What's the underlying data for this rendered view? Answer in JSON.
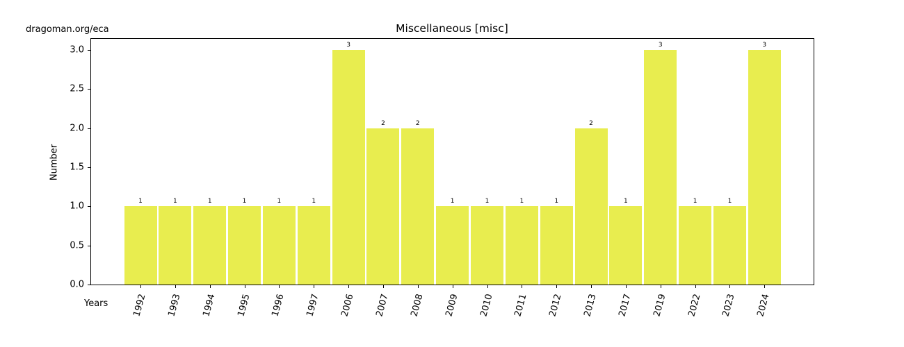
{
  "watermark": "dragoman.org/eca",
  "chart_data": {
    "type": "bar",
    "title": "Miscellaneous [misc]",
    "xlabel": "Years",
    "ylabel": "Number",
    "categories": [
      "1992",
      "1993",
      "1994",
      "1995",
      "1996",
      "1997",
      "2006",
      "2007",
      "2008",
      "2009",
      "2010",
      "2011",
      "2012",
      "2013",
      "2017",
      "2019",
      "2022",
      "2023",
      "2024"
    ],
    "values": [
      1,
      1,
      1,
      1,
      1,
      1,
      3,
      2,
      2,
      1,
      1,
      1,
      1,
      2,
      1,
      3,
      1,
      1,
      3
    ],
    "ylim": [
      0,
      3.15
    ],
    "yticks": [
      "0.0",
      "0.5",
      "1.0",
      "1.5",
      "2.0",
      "2.5",
      "3.0"
    ],
    "bar_color": "#e8ed4f",
    "grid": false,
    "legend": null,
    "data_labels": true
  }
}
